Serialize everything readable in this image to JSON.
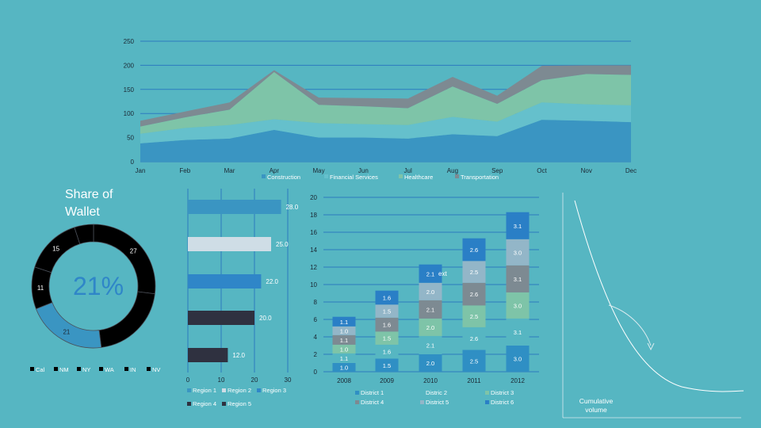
{
  "colors": {
    "background": "#56b6c2",
    "construction": "#3a95c2",
    "financial": "#65c0cc",
    "healthcare": "#7ec4a8",
    "transportation": "#7d8a92",
    "dark": "#2f3140",
    "black": "#000000",
    "gridline": "#2c7bbf"
  },
  "chart_data": [
    {
      "type": "area",
      "stacked": true,
      "categories": [
        "Jan",
        "Feb",
        "Mar",
        "Apr",
        "May",
        "Jun",
        "Jul",
        "Aug",
        "Sep",
        "Oct",
        "Nov",
        "Dec"
      ],
      "ylim": [
        0,
        250
      ],
      "yticks": [
        "0",
        "50",
        "100",
        "150",
        "200",
        "250"
      ],
      "grid": true,
      "legend": "bottom",
      "series": [
        {
          "name": "Construction",
          "color": "#3a95c2",
          "values": [
            38,
            45,
            48,
            66,
            50,
            50,
            48,
            57,
            53,
            87,
            85,
            82
          ]
        },
        {
          "name": "Financial Services",
          "color": "#65c0cc",
          "values": [
            20,
            25,
            28,
            22,
            30,
            28,
            28,
            36,
            30,
            36,
            34,
            35
          ]
        },
        {
          "name": "Healthcare",
          "color": "#7ec4a8",
          "values": [
            15,
            22,
            32,
            98,
            38,
            37,
            35,
            63,
            37,
            46,
            63,
            63
          ]
        },
        {
          "name": "Transportation",
          "color": "#7d8a92",
          "values": [
            12,
            12,
            15,
            4,
            15,
            17,
            20,
            20,
            17,
            30,
            18,
            20
          ]
        }
      ]
    },
    {
      "type": "pie",
      "donut": true,
      "title": "Share of Wallet",
      "center_label": "21%",
      "legend": "bottom",
      "slices": [
        {
          "name": "Cal",
          "value": 27,
          "label": "27",
          "color": "#000000"
        },
        {
          "name": "NM",
          "value": 21,
          "label": "",
          "color": "#000000"
        },
        {
          "name": "NY",
          "value": 21,
          "label": "21",
          "color": "#3a95c2"
        },
        {
          "name": "WA",
          "value": 11,
          "label": "11",
          "color": "#000000"
        },
        {
          "name": "IN",
          "value": 15,
          "label": "15",
          "color": "#000000"
        },
        {
          "name": "NV",
          "value": 5,
          "label": "",
          "color": "#000000"
        }
      ],
      "legend_items": [
        "Cal",
        "NM",
        "NY",
        "WA",
        "IN",
        "NV"
      ]
    },
    {
      "type": "bar",
      "orientation": "horizontal",
      "categories": [
        "Region 1",
        "Region 2",
        "Region 3",
        "Region 4",
        "Region 5"
      ],
      "values": [
        28.0,
        25.0,
        22.0,
        20.0,
        12.0
      ],
      "labels": [
        "28.0",
        "25.0",
        "22.0",
        "20.0",
        "12.0"
      ],
      "colors": [
        "#3a95c2",
        "#cfdde6",
        "#2f86c8",
        "#2f3140",
        "#2f3140"
      ],
      "xlim": [
        0,
        30
      ],
      "xticks": [
        "0",
        "10",
        "20",
        "30"
      ],
      "legend": "bottom"
    },
    {
      "type": "bar",
      "stacked": true,
      "categories": [
        "2008",
        "2009",
        "2010",
        "2011",
        "2012"
      ],
      "ylim": [
        0,
        20
      ],
      "yticks": [
        "0",
        "2",
        "4",
        "6",
        "8",
        "10",
        "12",
        "14",
        "16",
        "18",
        "20"
      ],
      "legend": "bottom",
      "annotation": "ext",
      "series": [
        {
          "name": "District 1",
          "color": "#2f8fc4",
          "values": [
            1.0,
            1.5,
            2.0,
            2.5,
            3.0
          ],
          "labels": [
            "1.0",
            "1.5",
            "2.0",
            "2.5",
            "3.0"
          ]
        },
        {
          "name": "Distric 2",
          "color": "#56b6c2",
          "values": [
            1.1,
            1.6,
            2.1,
            2.6,
            3.1
          ],
          "labels": [
            "1.1",
            "1.6",
            "2.1",
            "2.6",
            "3.1"
          ]
        },
        {
          "name": "District 3",
          "color": "#7ec4a8",
          "values": [
            1.0,
            1.5,
            2.0,
            2.5,
            3.0
          ],
          "labels": [
            "1.0",
            "1.5",
            "2.0",
            "2.5",
            "3.0"
          ]
        },
        {
          "name": "District 4",
          "color": "#7d8a92",
          "values": [
            1.1,
            1.6,
            2.1,
            2.6,
            3.1
          ],
          "labels": [
            "1.1",
            "1.6",
            "2.1",
            "2.6",
            "3.1"
          ]
        },
        {
          "name": "District 5",
          "color": "#93b6c8",
          "values": [
            1.0,
            1.5,
            2.0,
            2.5,
            3.0
          ],
          "labels": [
            "1.0",
            "1.5",
            "2.0",
            "2.5",
            "3.0"
          ]
        },
        {
          "name": "District 6",
          "color": "#2a7fc6",
          "values": [
            1.1,
            1.6,
            2.1,
            2.6,
            3.1
          ],
          "labels": [
            "1.1",
            "1.6",
            "2.1",
            "2.6",
            "3.1"
          ]
        }
      ]
    },
    {
      "type": "line",
      "xlabel": "Cumulative volume",
      "curve": "decay"
    }
  ]
}
